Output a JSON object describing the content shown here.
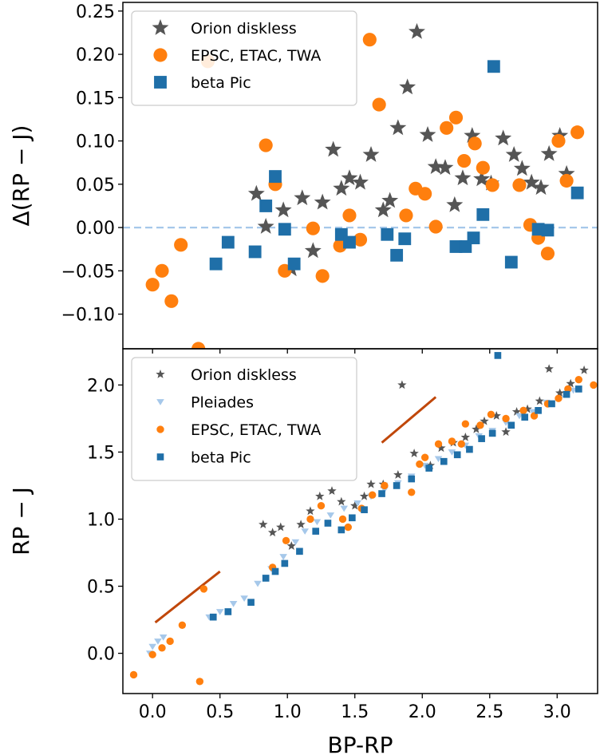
{
  "chart_data": [
    {
      "type": "scatter",
      "panel": "top",
      "xlabel": "",
      "ylabel": "Δ(RP − J)",
      "xlim": [
        -0.22,
        3.3
      ],
      "ylim": [
        -0.14,
        0.26
      ],
      "yticks": [
        -0.1,
        -0.05,
        0.0,
        0.05,
        0.1,
        0.15,
        0.2,
        0.25
      ],
      "ytick_labels": [
        "−0.10",
        "−0.05",
        "0.00",
        "0.05",
        "0.10",
        "0.15",
        "0.20",
        "0.25"
      ],
      "hline": {
        "y": 0.0,
        "style": "dashed",
        "color": "#a6c8ea"
      },
      "legend_position": "upper-left",
      "series": [
        {
          "name": "Orion diskless",
          "marker": "star",
          "color": "#555555",
          "points": [
            [
              0.77,
              0.039
            ],
            [
              0.84,
              0.001
            ],
            [
              0.97,
              0.02
            ],
            [
              1.03,
              -0.048
            ],
            [
              1.11,
              0.034
            ],
            [
              1.19,
              -0.027
            ],
            [
              1.26,
              0.029
            ],
            [
              1.34,
              0.09
            ],
            [
              1.4,
              0.045
            ],
            [
              1.46,
              0.057
            ],
            [
              1.54,
              0.052
            ],
            [
              1.62,
              0.084
            ],
            [
              1.71,
              0.02
            ],
            [
              1.76,
              0.031
            ],
            [
              1.82,
              0.115
            ],
            [
              1.89,
              0.162
            ],
            [
              1.96,
              0.226
            ],
            [
              2.04,
              0.107
            ],
            [
              2.1,
              0.07
            ],
            [
              2.17,
              0.069
            ],
            [
              2.24,
              0.026
            ],
            [
              2.3,
              0.057
            ],
            [
              2.37,
              0.106
            ],
            [
              2.44,
              0.056
            ],
            [
              2.51,
              0.051
            ],
            [
              2.6,
              0.103
            ],
            [
              2.68,
              0.084
            ],
            [
              2.74,
              0.068
            ],
            [
              2.81,
              0.052
            ],
            [
              2.88,
              0.046
            ],
            [
              2.94,
              0.085
            ],
            [
              3.02,
              0.106
            ],
            [
              3.07,
              0.062
            ]
          ]
        },
        {
          "name": "EPSC, ETAC, TWA",
          "marker": "circle",
          "color": "#ff7f0e",
          "points": [
            [
              0.0,
              -0.066
            ],
            [
              0.07,
              -0.05
            ],
            [
              0.14,
              -0.085
            ],
            [
              0.21,
              -0.02
            ],
            [
              0.34,
              -0.14
            ],
            [
              0.41,
              0.192
            ],
            [
              0.84,
              0.095
            ],
            [
              0.91,
              0.05
            ],
            [
              0.98,
              -0.05
            ],
            [
              1.19,
              -0.001
            ],
            [
              1.26,
              -0.056
            ],
            [
              1.39,
              -0.021
            ],
            [
              1.46,
              0.014
            ],
            [
              1.54,
              -0.014
            ],
            [
              1.61,
              0.217
            ],
            [
              1.68,
              0.142
            ],
            [
              1.88,
              0.014
            ],
            [
              1.95,
              0.045
            ],
            [
              2.02,
              0.039
            ],
            [
              2.1,
              0.001
            ],
            [
              2.18,
              0.115
            ],
            [
              2.25,
              0.127
            ],
            [
              2.31,
              0.077
            ],
            [
              2.39,
              0.097
            ],
            [
              2.45,
              0.069
            ],
            [
              2.52,
              0.049
            ],
            [
              2.72,
              0.049
            ],
            [
              2.8,
              0.003
            ],
            [
              2.86,
              -0.012
            ],
            [
              2.93,
              -0.03
            ],
            [
              3.01,
              0.1
            ],
            [
              3.07,
              0.054
            ],
            [
              3.15,
              0.11
            ]
          ]
        },
        {
          "name": "beta Pic",
          "marker": "square",
          "color": "#1f6fa8",
          "points": [
            [
              0.47,
              -0.042
            ],
            [
              0.56,
              -0.017
            ],
            [
              0.76,
              -0.028
            ],
            [
              0.84,
              0.025
            ],
            [
              0.91,
              0.059
            ],
            [
              0.98,
              -0.002
            ],
            [
              1.05,
              -0.042
            ],
            [
              1.4,
              -0.008
            ],
            [
              1.46,
              -0.017
            ],
            [
              1.74,
              -0.008
            ],
            [
              1.81,
              -0.032
            ],
            [
              1.87,
              -0.013
            ],
            [
              2.25,
              -0.022
            ],
            [
              2.32,
              -0.022
            ],
            [
              2.38,
              -0.012
            ],
            [
              2.45,
              0.015
            ],
            [
              2.53,
              0.186
            ],
            [
              2.66,
              -0.04
            ],
            [
              2.86,
              -0.002
            ],
            [
              2.93,
              -0.003
            ],
            [
              3.15,
              0.04
            ]
          ]
        }
      ]
    },
    {
      "type": "scatter",
      "panel": "bottom",
      "xlabel": "BP-RP",
      "ylabel": "RP − J",
      "xlim": [
        -0.22,
        3.3
      ],
      "ylim": [
        -0.3,
        2.27
      ],
      "xticks": [
        0.0,
        0.5,
        1.0,
        1.5,
        2.0,
        2.5,
        3.0
      ],
      "xtick_labels": [
        "0.0",
        "0.5",
        "1.0",
        "1.5",
        "2.0",
        "2.5",
        "3.0"
      ],
      "yticks": [
        0.0,
        0.5,
        1.0,
        1.5,
        2.0
      ],
      "ytick_labels": [
        "0.0",
        "0.5",
        "1.0",
        "1.5",
        "2.0"
      ],
      "legend_position": "upper-left",
      "reddening_vectors": [
        {
          "from": [
            0.02,
            0.23
          ],
          "to": [
            0.5,
            0.61
          ],
          "color": "#c0470a"
        },
        {
          "from": [
            1.7,
            1.57
          ],
          "to": [
            2.1,
            1.91
          ],
          "color": "#c0470a"
        }
      ],
      "series": [
        {
          "name": "Orion diskless",
          "marker": "star",
          "color": "#555555",
          "points": [
            [
              0.82,
              0.96
            ],
            [
              0.89,
              0.9
            ],
            [
              0.95,
              0.94
            ],
            [
              1.03,
              0.8
            ],
            [
              1.1,
              0.96
            ],
            [
              1.17,
              1.06
            ],
            [
              1.24,
              1.17
            ],
            [
              1.33,
              1.21
            ],
            [
              1.4,
              1.13
            ],
            [
              1.5,
              1.1
            ],
            [
              1.57,
              1.17
            ],
            [
              1.62,
              1.26
            ],
            [
              1.71,
              1.26
            ],
            [
              1.82,
              1.33
            ],
            [
              1.85,
              2.0
            ],
            [
              1.94,
              1.49
            ],
            [
              2.06,
              1.4
            ],
            [
              2.14,
              1.53
            ],
            [
              2.23,
              1.57
            ],
            [
              2.32,
              1.61
            ],
            [
              2.4,
              1.67
            ],
            [
              2.46,
              1.73
            ],
            [
              2.55,
              1.77
            ],
            [
              2.62,
              1.65
            ],
            [
              2.7,
              1.8
            ],
            [
              2.78,
              1.82
            ],
            [
              2.87,
              1.88
            ],
            [
              2.94,
              2.12
            ],
            [
              3.02,
              1.94
            ],
            [
              3.1,
              2.01
            ],
            [
              3.2,
              2.11
            ]
          ]
        },
        {
          "name": "Pleiades",
          "marker": "triangle-down",
          "color": "#a6c8ea",
          "points": [
            [
              -0.02,
              0.0
            ],
            [
              0.0,
              0.05
            ],
            [
              0.04,
              0.09
            ],
            [
              0.08,
              0.12
            ],
            [
              0.42,
              0.27
            ],
            [
              0.5,
              0.31
            ],
            [
              0.6,
              0.37
            ],
            [
              0.68,
              0.41
            ],
            [
              0.78,
              0.52
            ],
            [
              0.88,
              0.63
            ],
            [
              0.97,
              0.72
            ],
            [
              1.06,
              0.83
            ],
            [
              1.13,
              0.91
            ],
            [
              1.22,
              0.98
            ],
            [
              1.32,
              1.03
            ],
            [
              1.42,
              1.08
            ],
            [
              1.52,
              1.12
            ],
            [
              1.62,
              1.17
            ],
            [
              1.72,
              1.22
            ],
            [
              1.82,
              1.27
            ],
            [
              1.92,
              1.32
            ],
            [
              2.02,
              1.4
            ],
            [
              2.12,
              1.45
            ],
            [
              2.22,
              1.5
            ],
            [
              2.32,
              1.55
            ],
            [
              2.42,
              1.62
            ],
            [
              2.52,
              1.66
            ],
            [
              2.62,
              1.72
            ],
            [
              2.72,
              1.77
            ],
            [
              2.82,
              1.8
            ],
            [
              2.92,
              1.87
            ],
            [
              3.02,
              1.9
            ],
            [
              3.12,
              1.96
            ]
          ]
        },
        {
          "name": "EPSC, ETAC, TWA",
          "marker": "circle",
          "color": "#ff7f0e",
          "points": [
            [
              -0.14,
              -0.16
            ],
            [
              0.0,
              -0.01
            ],
            [
              0.07,
              0.04
            ],
            [
              0.13,
              0.09
            ],
            [
              0.22,
              0.21
            ],
            [
              0.35,
              -0.21
            ],
            [
              0.38,
              0.48
            ],
            [
              0.89,
              0.64
            ],
            [
              0.99,
              0.84
            ],
            [
              1.17,
              1.0
            ],
            [
              1.25,
              1.1
            ],
            [
              1.41,
              1.0
            ],
            [
              1.45,
              0.94
            ],
            [
              1.55,
              1.08
            ],
            [
              1.63,
              1.18
            ],
            [
              1.72,
              1.25
            ],
            [
              1.92,
              1.2
            ],
            [
              1.98,
              1.41
            ],
            [
              2.02,
              1.46
            ],
            [
              2.12,
              1.56
            ],
            [
              2.22,
              1.58
            ],
            [
              2.29,
              1.56
            ],
            [
              2.32,
              1.71
            ],
            [
              2.43,
              1.7
            ],
            [
              2.51,
              1.78
            ],
            [
              2.62,
              1.75
            ],
            [
              2.75,
              1.81
            ],
            [
              2.83,
              1.77
            ],
            [
              2.93,
              1.86
            ],
            [
              3.01,
              1.9
            ],
            [
              3.08,
              1.97
            ],
            [
              3.16,
              2.04
            ],
            [
              3.27,
              2.0
            ]
          ]
        },
        {
          "name": "beta Pic",
          "marker": "square",
          "color": "#1f6fa8",
          "points": [
            [
              0.45,
              0.27
            ],
            [
              0.56,
              0.31
            ],
            [
              0.73,
              0.38
            ],
            [
              0.84,
              0.56
            ],
            [
              0.91,
              0.61
            ],
            [
              0.98,
              0.67
            ],
            [
              1.09,
              0.76
            ],
            [
              1.21,
              0.91
            ],
            [
              1.3,
              0.97
            ],
            [
              1.4,
              0.92
            ],
            [
              1.48,
              1.01
            ],
            [
              1.57,
              1.07
            ],
            [
              1.7,
              1.19
            ],
            [
              1.81,
              1.25
            ],
            [
              1.92,
              1.3
            ],
            [
              2.05,
              1.38
            ],
            [
              2.16,
              1.43
            ],
            [
              2.26,
              1.48
            ],
            [
              2.35,
              1.52
            ],
            [
              2.44,
              1.6
            ],
            [
              2.52,
              1.64
            ],
            [
              2.56,
              2.22
            ],
            [
              2.66,
              1.7
            ],
            [
              2.76,
              1.76
            ],
            [
              2.86,
              1.81
            ],
            [
              2.96,
              1.86
            ],
            [
              3.07,
              1.93
            ],
            [
              3.16,
              1.97
            ]
          ]
        }
      ]
    }
  ]
}
